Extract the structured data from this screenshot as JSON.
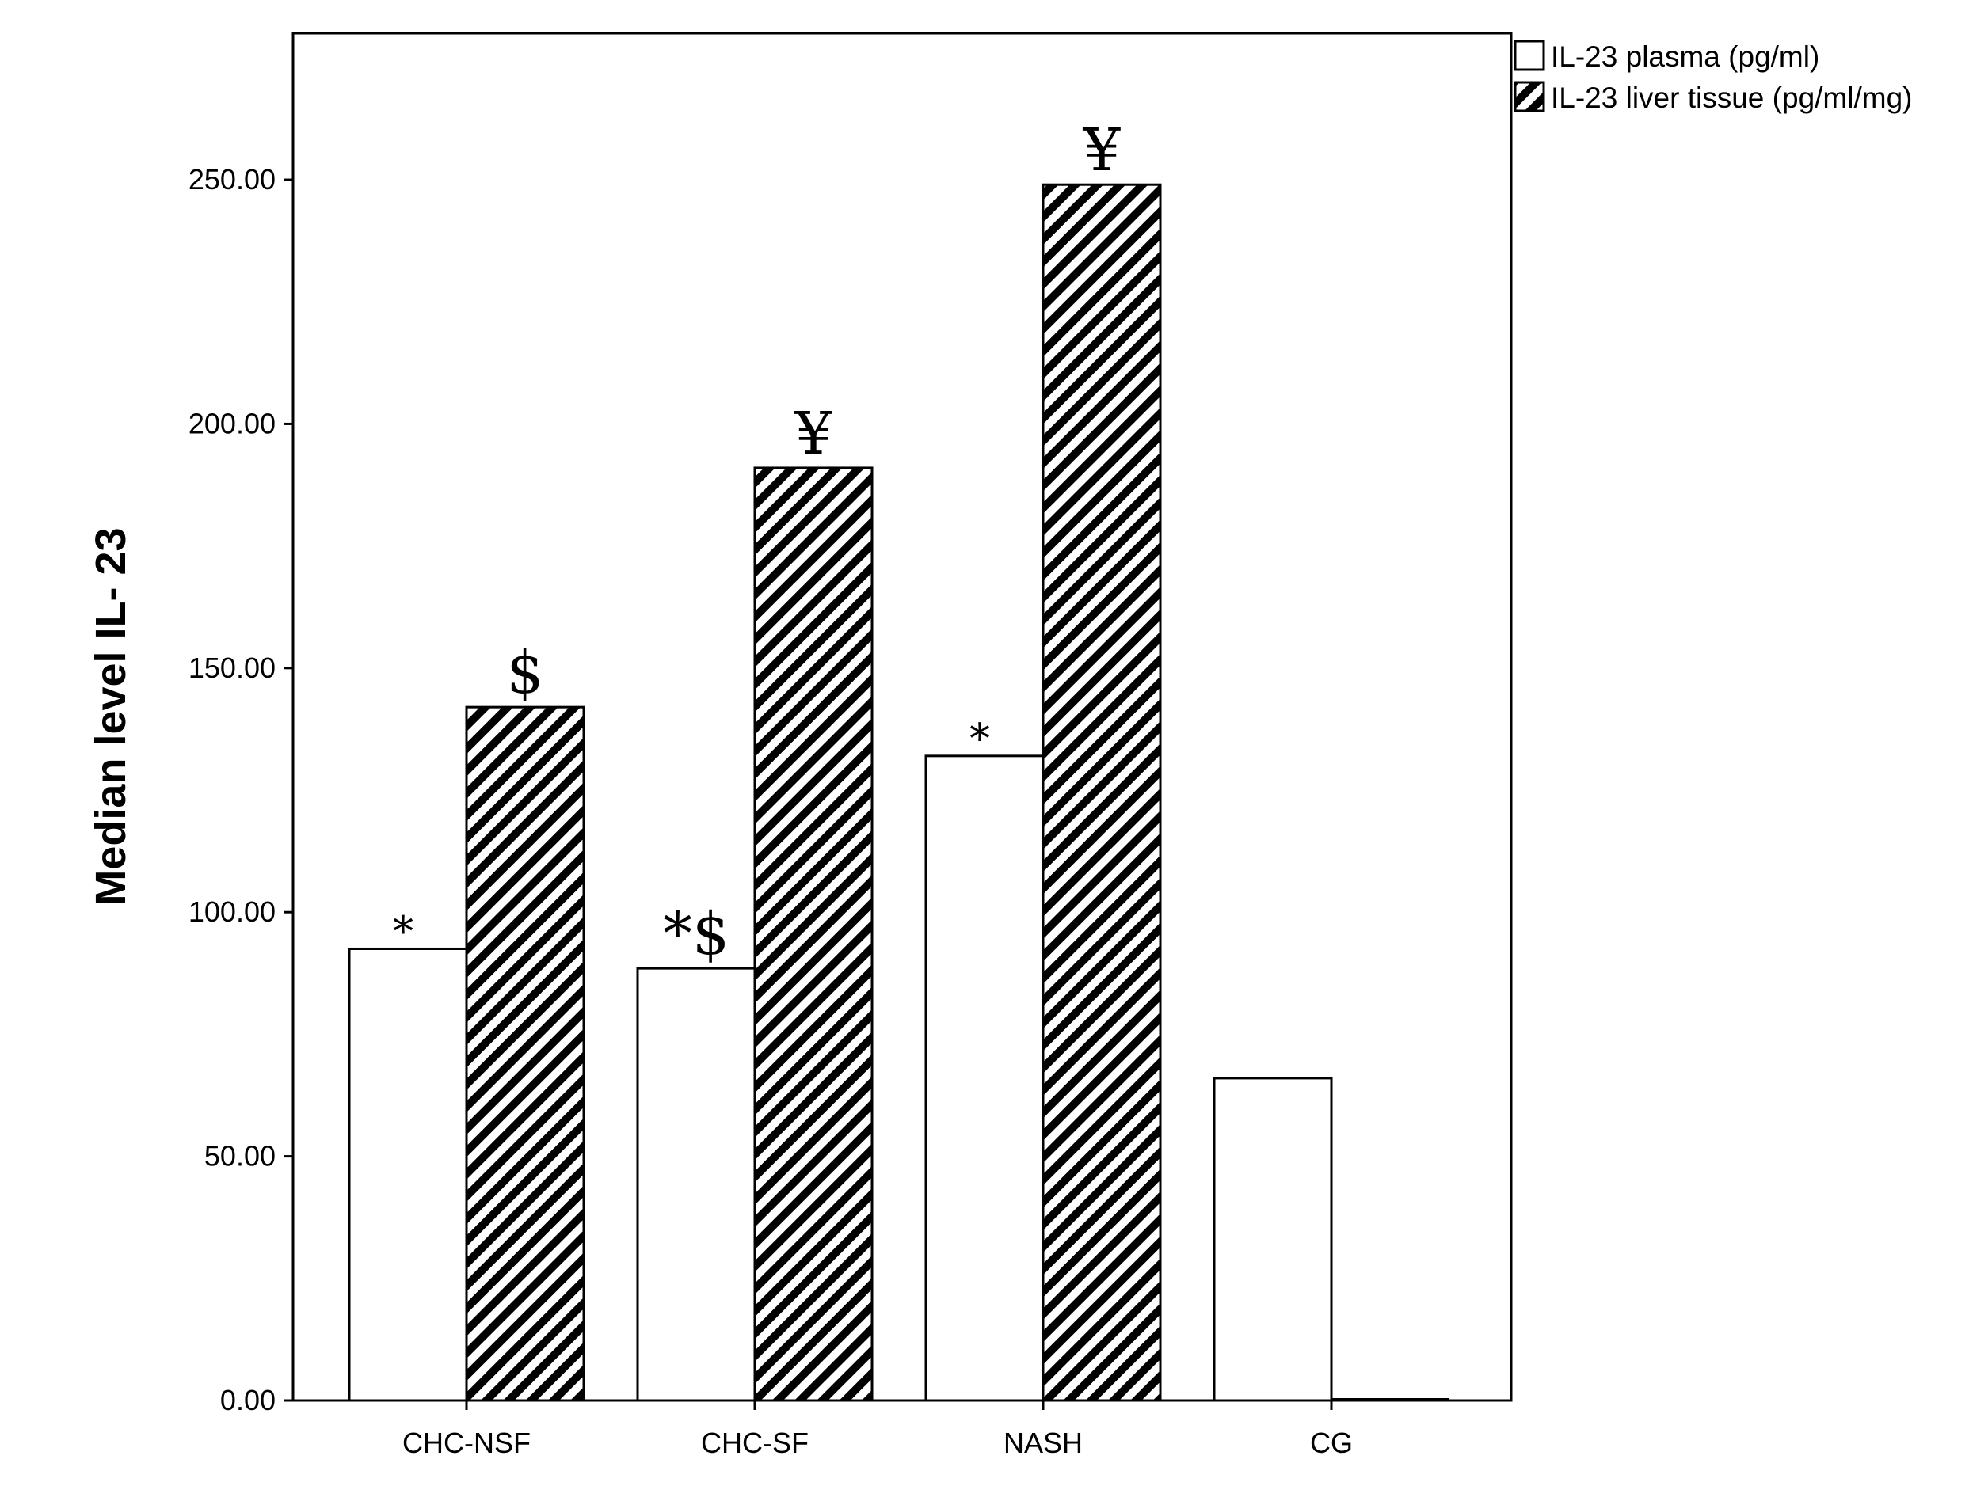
{
  "chart_data": {
    "type": "bar",
    "title": "",
    "xlabel": "",
    "ylabel": "Median level IL- 23",
    "ylim": [
      0,
      280
    ],
    "yticks": [
      "0.00",
      "50.00",
      "100.00",
      "150.00",
      "200.00",
      "250.00"
    ],
    "ytick_values": [
      0,
      50,
      100,
      150,
      200,
      250
    ],
    "categories": [
      "CHC-NSF",
      "CHC-SF",
      "NASH",
      "CG"
    ],
    "series": [
      {
        "name": "IL-23 plasma (pg/ml)",
        "values": [
          92.5,
          88.5,
          132,
          66
        ],
        "annotations": [
          "*",
          "*$",
          "*",
          ""
        ],
        "fill": "#ffffff",
        "pattern": "none"
      },
      {
        "name": "IL-23 liver tissue (pg/ml/mg)",
        "values": [
          142,
          191,
          249,
          0
        ],
        "annotations": [
          "$",
          "¥",
          "¥",
          ""
        ],
        "fill": "#000000",
        "pattern": "diagonal-hatch"
      }
    ],
    "grid": false,
    "legend": "top-right"
  }
}
